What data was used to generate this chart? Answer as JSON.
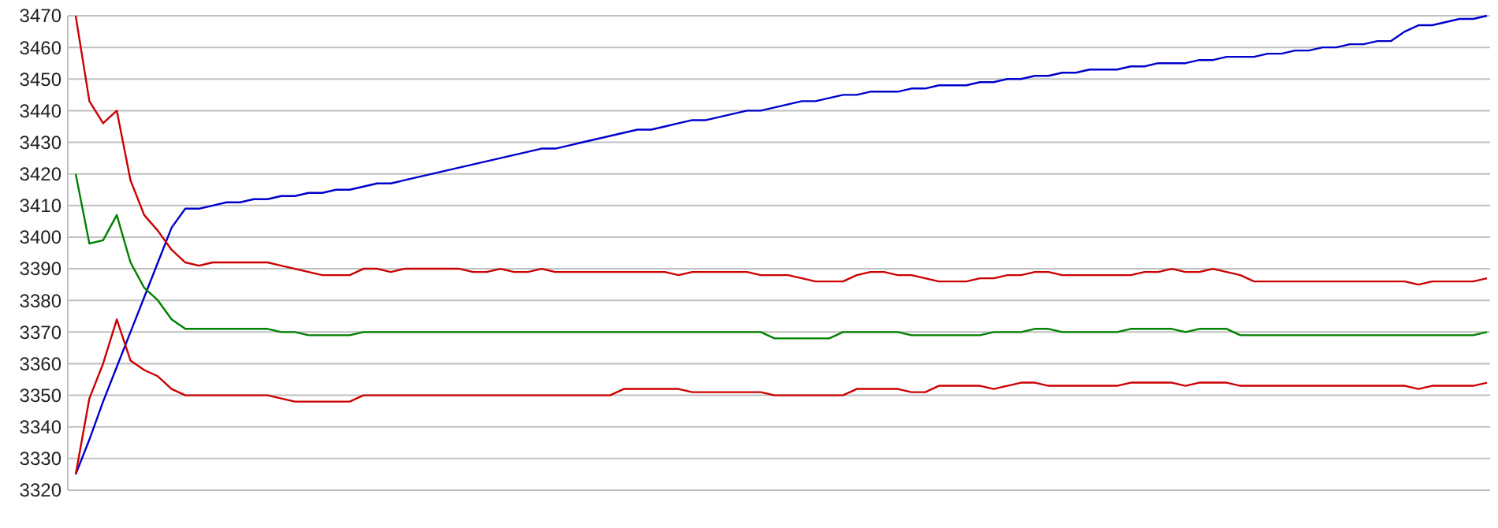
{
  "chart_data": {
    "type": "line",
    "categories": [
      null,
      null,
      null,
      null,
      null,
      null,
      null,
      null,
      null,
      null,
      null,
      null,
      null,
      null,
      null,
      null,
      null,
      null,
      null,
      null,
      null,
      null,
      null,
      null,
      null,
      null,
      null,
      null,
      null,
      null,
      null,
      null,
      null,
      null,
      null,
      null,
      null,
      null,
      null,
      null,
      null,
      null,
      null,
      null,
      null,
      null,
      null,
      null,
      null,
      null,
      null,
      null,
      null,
      null,
      null,
      null,
      null,
      null,
      null,
      null,
      null,
      null,
      null,
      null,
      null,
      null,
      null,
      null,
      null,
      null,
      null,
      null,
      null,
      null,
      null,
      null,
      null,
      null,
      null,
      null,
      null,
      null,
      null,
      null,
      null,
      null,
      null,
      null,
      null,
      null,
      null,
      null,
      null,
      null,
      null,
      null,
      null,
      null,
      null,
      null,
      null,
      null,
      null,
      null
    ],
    "ylim": [
      3320,
      3470
    ],
    "yticks": [
      3320,
      3330,
      3340,
      3350,
      3360,
      3370,
      3380,
      3390,
      3400,
      3410,
      3420,
      3430,
      3440,
      3450,
      3460,
      3470
    ],
    "grid": "y",
    "marker": "none",
    "line_style": "solid",
    "series": [
      {
        "color": "#0000cc",
        "values": [
          3325,
          3336,
          3348,
          3359,
          3370,
          3381,
          3392,
          3403,
          3409,
          3409,
          3410,
          3411,
          3411,
          3412,
          3412,
          3413,
          3413,
          3414,
          3414,
          3415,
          3415,
          3416,
          3417,
          3417,
          3418,
          3419,
          3420,
          3421,
          3422,
          3423,
          3424,
          3425,
          3426,
          3427,
          3428,
          3428,
          3429,
          3430,
          3431,
          3432,
          3433,
          3434,
          3434,
          3435,
          3436,
          3437,
          3437,
          3438,
          3439,
          3440,
          3440,
          3441,
          3442,
          3443,
          3443,
          3444,
          3445,
          3445,
          3446,
          3446,
          3446,
          3447,
          3447,
          3448,
          3448,
          3448,
          3449,
          3449,
          3450,
          3450,
          3451,
          3451,
          3452,
          3452,
          3453,
          3453,
          3453,
          3454,
          3454,
          3455,
          3455,
          3455,
          3456,
          3456,
          3457,
          3457,
          3457,
          3458,
          3458,
          3459,
          3459,
          3460,
          3460,
          3461,
          3461,
          3462,
          3462,
          3465,
          3467,
          3467,
          3468,
          3469,
          3469,
          3470
        ]
      },
      {
        "color": "#cc0000",
        "values": [
          3470,
          3443,
          3436,
          3440,
          3418,
          3407,
          3402,
          3396,
          3392,
          3391,
          3392,
          3392,
          3392,
          3392,
          3392,
          3391,
          3390,
          3389,
          3388,
          3388,
          3388,
          3390,
          3390,
          3389,
          3390,
          3390,
          3390,
          3390,
          3390,
          3389,
          3389,
          3390,
          3389,
          3389,
          3390,
          3389,
          3389,
          3389,
          3389,
          3389,
          3389,
          3389,
          3389,
          3389,
          3388,
          3389,
          3389,
          3389,
          3389,
          3389,
          3388,
          3388,
          3388,
          3387,
          3386,
          3386,
          3386,
          3388,
          3389,
          3389,
          3388,
          3388,
          3387,
          3386,
          3386,
          3386,
          3387,
          3387,
          3388,
          3388,
          3389,
          3389,
          3388,
          3388,
          3388,
          3388,
          3388,
          3388,
          3389,
          3389,
          3390,
          3389,
          3389,
          3390,
          3389,
          3388,
          3386,
          3386,
          3386,
          3386,
          3386,
          3386,
          3386,
          3386,
          3386,
          3386,
          3386,
          3386,
          3385,
          3386,
          3386,
          3386,
          3386,
          3387
        ]
      },
      {
        "color": "#008000",
        "values": [
          3420,
          3398,
          3399,
          3407,
          3392,
          3384,
          3380,
          3374,
          3371,
          3371,
          3371,
          3371,
          3371,
          3371,
          3371,
          3370,
          3370,
          3369,
          3369,
          3369,
          3369,
          3370,
          3370,
          3370,
          3370,
          3370,
          3370,
          3370,
          3370,
          3370,
          3370,
          3370,
          3370,
          3370,
          3370,
          3370,
          3370,
          3370,
          3370,
          3370,
          3370,
          3370,
          3370,
          3370,
          3370,
          3370,
          3370,
          3370,
          3370,
          3370,
          3370,
          3368,
          3368,
          3368,
          3368,
          3368,
          3370,
          3370,
          3370,
          3370,
          3370,
          3369,
          3369,
          3369,
          3369,
          3369,
          3369,
          3370,
          3370,
          3370,
          3371,
          3371,
          3370,
          3370,
          3370,
          3370,
          3370,
          3371,
          3371,
          3371,
          3371,
          3370,
          3371,
          3371,
          3371,
          3369,
          3369,
          3369,
          3369,
          3369,
          3369,
          3369,
          3369,
          3369,
          3369,
          3369,
          3369,
          3369,
          3369,
          3369,
          3369,
          3369,
          3369,
          3370
        ]
      },
      {
        "color": "#cc0000",
        "values": [
          3325,
          3349,
          3360,
          3374,
          3361,
          3358,
          3356,
          3352,
          3350,
          3350,
          3350,
          3350,
          3350,
          3350,
          3350,
          3349,
          3348,
          3348,
          3348,
          3348,
          3348,
          3350,
          3350,
          3350,
          3350,
          3350,
          3350,
          3350,
          3350,
          3350,
          3350,
          3350,
          3350,
          3350,
          3350,
          3350,
          3350,
          3350,
          3350,
          3350,
          3352,
          3352,
          3352,
          3352,
          3352,
          3351,
          3351,
          3351,
          3351,
          3351,
          3351,
          3350,
          3350,
          3350,
          3350,
          3350,
          3350,
          3352,
          3352,
          3352,
          3352,
          3351,
          3351,
          3353,
          3353,
          3353,
          3353,
          3352,
          3353,
          3354,
          3354,
          3353,
          3353,
          3353,
          3353,
          3353,
          3353,
          3354,
          3354,
          3354,
          3354,
          3353,
          3354,
          3354,
          3354,
          3353,
          3353,
          3353,
          3353,
          3353,
          3353,
          3353,
          3353,
          3353,
          3353,
          3353,
          3353,
          3353,
          3352,
          3353,
          3353,
          3353,
          3353,
          3354
        ]
      }
    ]
  }
}
